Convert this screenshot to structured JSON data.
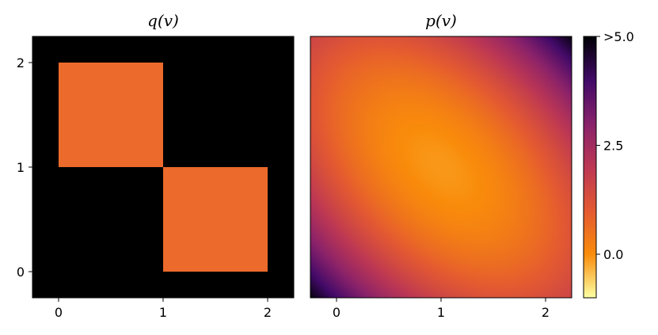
{
  "chart_data": [
    {
      "type": "heatmap",
      "title": "q(v)",
      "xlim": [
        -0.25,
        2.25
      ],
      "ylim": [
        -0.25,
        2.25
      ],
      "x_ticks": [
        "0",
        "1",
        "2"
      ],
      "y_ticks": [
        "0",
        "1",
        "2"
      ],
      "background_color": "#000000",
      "fill_color": "#ec6a2b",
      "regions": [
        {
          "x": [
            0,
            1
          ],
          "y": [
            1,
            2
          ]
        },
        {
          "x": [
            1,
            2
          ],
          "y": [
            0,
            1
          ]
        }
      ]
    },
    {
      "type": "heatmap",
      "title": "p(v)",
      "xlim": [
        -0.25,
        2.25
      ],
      "ylim": [
        -0.25,
        2.25
      ],
      "x_ticks": [
        "0",
        "1",
        "2"
      ],
      "colormap": "inferno_r",
      "center": [
        1,
        1
      ],
      "min_value": -0.1,
      "shape": "elliptical, elongated along the x + y = 2 diagonal"
    }
  ],
  "colorbar": {
    "vmin": -1,
    "vmax": 5,
    "ticks": [
      {
        "value": 0,
        "label": "0.0"
      },
      {
        "value": 2.5,
        "label": "2.5"
      },
      {
        "value": 5,
        "label": ">5.0"
      }
    ],
    "colormap": "inferno_r"
  }
}
